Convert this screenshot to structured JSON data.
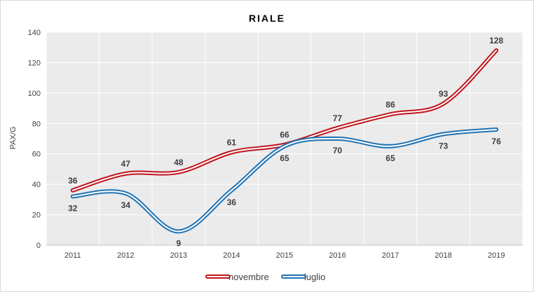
{
  "chart_data": {
    "type": "line",
    "title": "RIALE",
    "ylabel": "PAX/G",
    "xlabel": "",
    "categories": [
      "2011",
      "2012",
      "2013",
      "2014",
      "2015",
      "2016",
      "2017",
      "2018",
      "2019"
    ],
    "ylim": [
      0,
      140
    ],
    "yticks": [
      0,
      20,
      40,
      60,
      80,
      100,
      120,
      140
    ],
    "grid": true,
    "smooth": true,
    "legend_position": "bottom",
    "series": [
      {
        "name": "novembre",
        "color": "#C0141C",
        "values": [
          36,
          47,
          48,
          61,
          66,
          77,
          86,
          93,
          128
        ]
      },
      {
        "name": "luglio",
        "color": "#1F73B4",
        "values": [
          32,
          34,
          9,
          36,
          65,
          70,
          65,
          73,
          76
        ]
      }
    ]
  }
}
